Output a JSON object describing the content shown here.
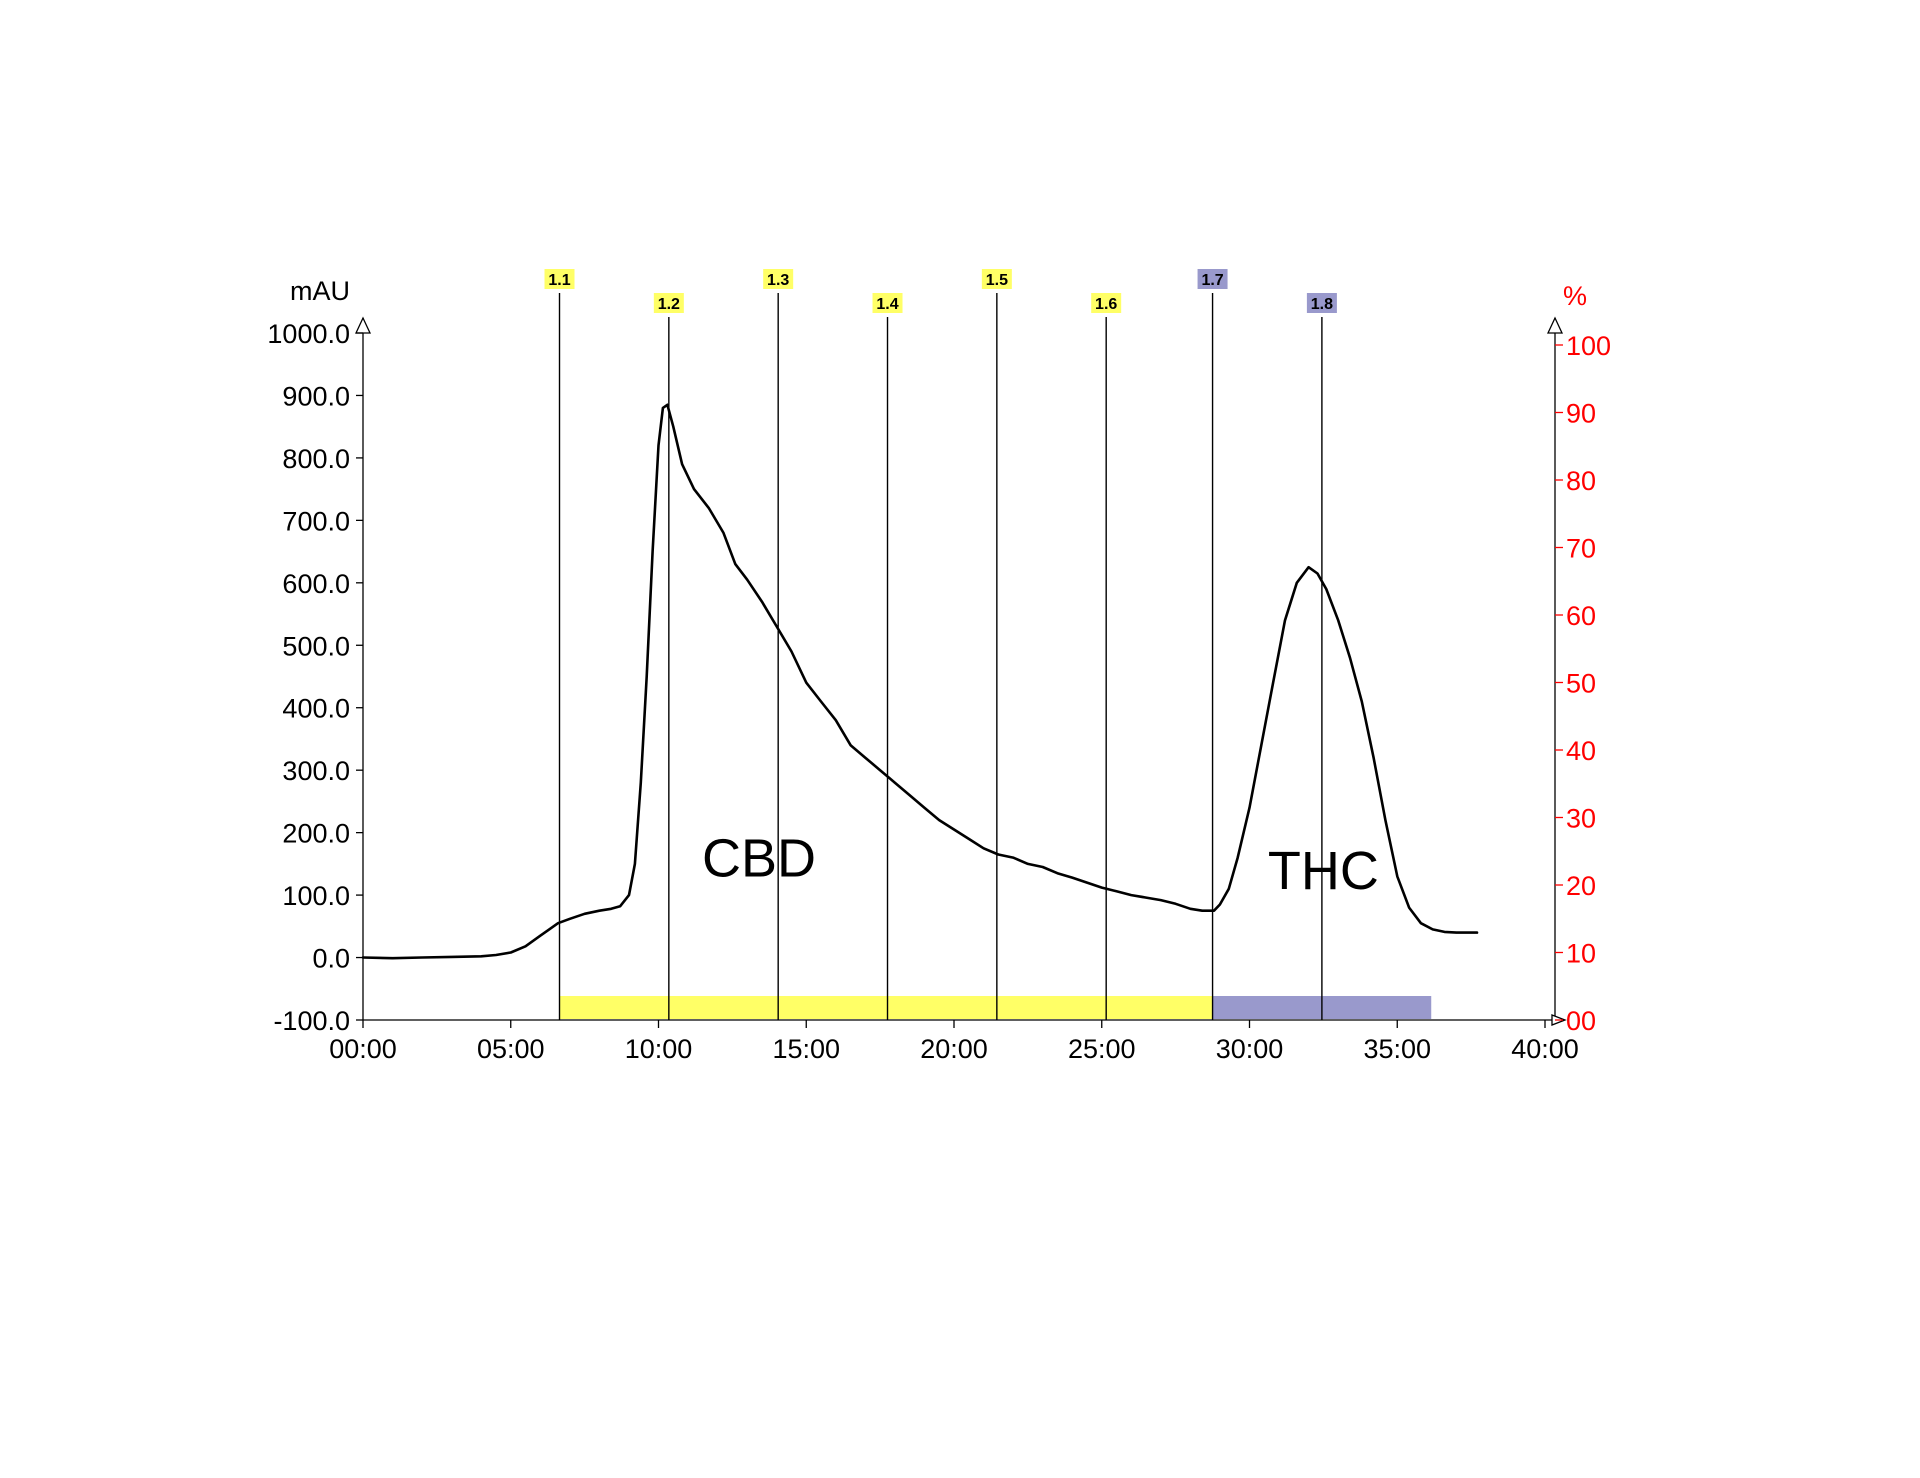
{
  "chart_data": {
    "type": "line",
    "ylabel": "mAU",
    "y2label": "%",
    "xlim": [
      0,
      40
    ],
    "ylim": [
      -100,
      1000
    ],
    "y2lim": [
      0,
      100
    ],
    "x_ticks": [
      {
        "value": 0,
        "label": "00:00"
      },
      {
        "value": 5,
        "label": "05:00"
      },
      {
        "value": 10,
        "label": "10:00"
      },
      {
        "value": 15,
        "label": "15:00"
      },
      {
        "value": 20,
        "label": "20:00"
      },
      {
        "value": 25,
        "label": "25:00"
      },
      {
        "value": 30,
        "label": "30:00"
      },
      {
        "value": 35,
        "label": "35:00"
      },
      {
        "value": 40,
        "label": "40:00"
      }
    ],
    "y_ticks": [
      {
        "value": 1000,
        "label": "1000.0"
      },
      {
        "value": 900,
        "label": "900.0"
      },
      {
        "value": 800,
        "label": "800.0"
      },
      {
        "value": 700,
        "label": "700.0"
      },
      {
        "value": 600,
        "label": "600.0"
      },
      {
        "value": 500,
        "label": "500.0"
      },
      {
        "value": 400,
        "label": "400.0"
      },
      {
        "value": 300,
        "label": "300.0"
      },
      {
        "value": 200,
        "label": "200.0"
      },
      {
        "value": 100,
        "label": "100.0"
      },
      {
        "value": 0,
        "label": "0.0"
      },
      {
        "value": -100,
        "label": "-100.0"
      }
    ],
    "y2_ticks": [
      {
        "value": 100,
        "label": "100"
      },
      {
        "value": 90,
        "label": "90"
      },
      {
        "value": 80,
        "label": "80"
      },
      {
        "value": 70,
        "label": "70"
      },
      {
        "value": 60,
        "label": "60"
      },
      {
        "value": 50,
        "label": "50"
      },
      {
        "value": 40,
        "label": "40"
      },
      {
        "value": 30,
        "label": "30"
      },
      {
        "value": 20,
        "label": "20"
      },
      {
        "value": 10,
        "label": "10"
      },
      {
        "value": 0,
        "label": "00"
      }
    ],
    "series": [
      {
        "x": [
          0,
          1,
          2,
          3,
          4,
          4.5,
          5,
          5.5,
          6,
          6.3,
          6.6,
          7,
          7.5,
          8,
          8.4,
          8.7,
          9.0,
          9.2,
          9.4,
          9.6,
          9.8,
          10.0,
          10.15,
          10.3,
          10.5,
          10.8,
          11.2,
          11.7,
          12.2,
          12.6,
          13.0,
          13.5,
          14.0,
          14.5,
          15.0,
          15.5,
          16.0,
          16.5,
          17.0,
          17.5,
          18.0,
          18.5,
          19.0,
          19.5,
          20.0,
          20.5,
          21.0,
          21.5,
          22.0,
          22.5,
          23.0,
          23.5,
          24.0,
          24.5,
          25.0,
          25.5,
          26.0,
          26.5,
          27.0,
          27.5,
          28.0,
          28.4,
          28.8,
          29.0,
          29.3,
          29.6,
          30.0,
          30.4,
          30.8,
          31.2,
          31.6,
          32.0,
          32.3,
          32.6,
          33.0,
          33.4,
          33.8,
          34.2,
          34.6,
          35.0,
          35.4,
          35.8,
          36.2,
          36.6,
          37.0,
          37.3,
          37.7
        ],
        "values": [
          0,
          -1,
          0,
          1,
          2,
          4,
          8,
          18,
          35,
          45,
          55,
          62,
          70,
          75,
          78,
          82,
          100,
          150,
          280,
          450,
          650,
          820,
          880,
          885,
          850,
          790,
          750,
          720,
          680,
          630,
          605,
          570,
          530,
          490,
          440,
          410,
          380,
          340,
          320,
          300,
          280,
          260,
          240,
          220,
          205,
          190,
          175,
          165,
          160,
          150,
          145,
          135,
          128,
          120,
          112,
          106,
          100,
          96,
          92,
          86,
          78,
          75,
          75,
          85,
          110,
          160,
          240,
          340,
          440,
          540,
          600,
          625,
          615,
          590,
          540,
          480,
          410,
          320,
          220,
          130,
          80,
          55,
          45,
          41,
          40,
          40,
          40
        ]
      }
    ],
    "fractions": [
      {
        "label": "1.1",
        "x": 6.65,
        "color": "#ffff66"
      },
      {
        "label": "1.2",
        "x": 10.35,
        "color": "#ffff66"
      },
      {
        "label": "1.3",
        "x": 14.05,
        "color": "#ffff66"
      },
      {
        "label": "1.4",
        "x": 17.75,
        "color": "#ffff66"
      },
      {
        "label": "1.5",
        "x": 21.45,
        "color": "#ffff66"
      },
      {
        "label": "1.6",
        "x": 25.15,
        "color": "#ffff66"
      },
      {
        "label": "1.7",
        "x": 28.75,
        "color": "#9999cc"
      },
      {
        "label": "1.8",
        "x": 32.45,
        "color": "#9999cc"
      }
    ],
    "collection_bands": [
      {
        "x_start": 6.65,
        "x_end": 28.75,
        "color": "#ffff66"
      },
      {
        "x_start": 28.75,
        "x_end": 36.15,
        "color": "#9999cc"
      }
    ],
    "annotations": [
      {
        "text": "CBD",
        "x": 13.4,
        "y": 130
      },
      {
        "text": "THC",
        "x": 32.5,
        "y": 110
      }
    ],
    "colors": {
      "trace": "#000000",
      "right_axis": "#ff0000"
    }
  }
}
